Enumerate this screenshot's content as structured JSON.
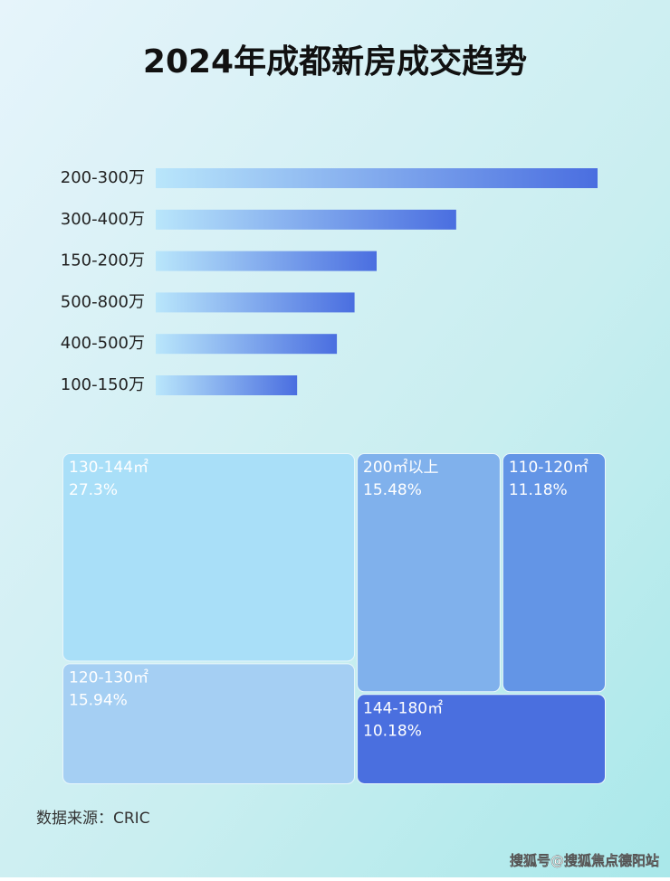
{
  "title": "2024年成都新房成交趋势",
  "chart_data": [
    {
      "type": "bar",
      "orientation": "horizontal",
      "categories": [
        "200-300万",
        "300-400万",
        "150-200万",
        "500-800万",
        "400-500万",
        "100-150万"
      ],
      "values": [
        100,
        68,
        50,
        45,
        41,
        32
      ],
      "xlim": [
        0,
        100
      ],
      "color": "#4a6ee0"
    },
    {
      "type": "treemap",
      "categories": [
        "130-144㎡",
        "120-130㎡",
        "200㎡以上",
        "110-120㎡",
        "144-180㎡"
      ],
      "values": [
        27.3,
        15.94,
        15.48,
        11.18,
        10.18
      ],
      "value_labels": [
        "27.3%",
        "15.94%",
        "15.48%",
        "11.18%",
        "10.18%"
      ],
      "colors": [
        "#a9dff8",
        "#a5cff3",
        "#80b1ec",
        "#6395e6",
        "#4a6fdf"
      ]
    }
  ],
  "source": "数据来源：CRIC",
  "watermark": "搜狐号@搜狐焦点德阳站"
}
